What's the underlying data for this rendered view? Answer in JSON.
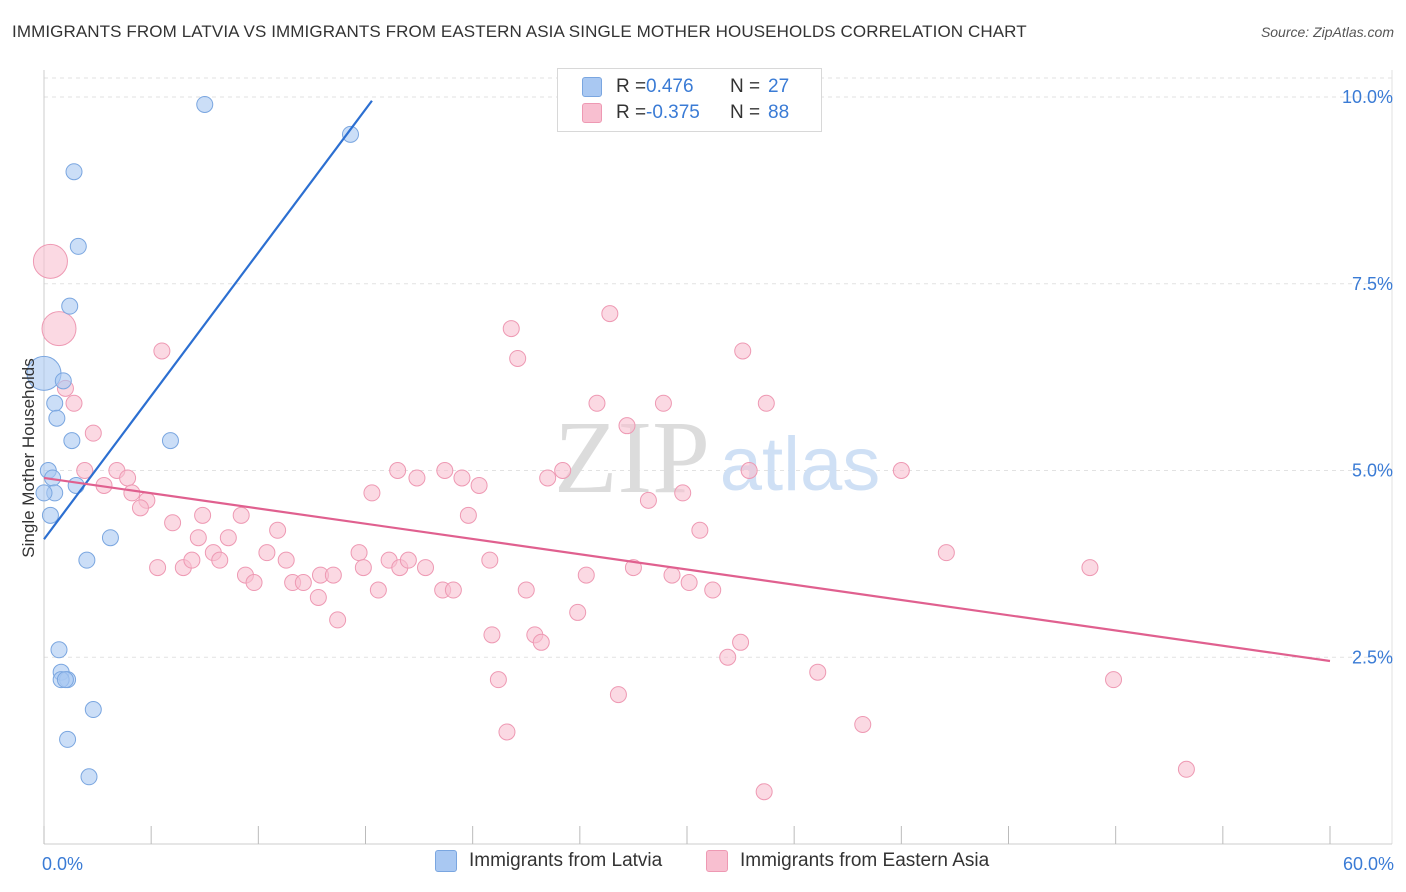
{
  "title": "IMMIGRANTS FROM LATVIA VS IMMIGRANTS FROM EASTERN ASIA SINGLE MOTHER HOUSEHOLDS CORRELATION CHART",
  "source": "Source: ZipAtlas.com",
  "watermark": {
    "zip": "ZIP",
    "atlas": "atlas"
  },
  "colors": {
    "latvia_fill": "#a9c8f2",
    "latvia_stroke": "#7aa6e0",
    "latvia_line": "#2c6fd1",
    "asia_fill": "#f8bfd0",
    "asia_stroke": "#ee99b3",
    "asia_line": "#e0608f",
    "axis_text": "#3a7bd5",
    "grid": "#e2e2e2"
  },
  "legend": {
    "latvia": {
      "r_label": "R =",
      "r_value": "0.476",
      "n_label": "N =",
      "n_value": "27"
    },
    "asia": {
      "r_label": "R =",
      "r_value": "-0.375",
      "n_label": "N =",
      "n_value": "88"
    }
  },
  "bottom_legend": {
    "latvia": "Immigrants from Latvia",
    "asia": "Immigrants from Eastern Asia"
  },
  "chart_data": {
    "type": "scatter",
    "title": "IMMIGRANTS FROM LATVIA VS IMMIGRANTS FROM EASTERN ASIA SINGLE MOTHER HOUSEHOLDS CORRELATION CHART",
    "xlabel": "",
    "ylabel": "Single Mother Households",
    "xlim": [
      0,
      60
    ],
    "ylim": [
      0,
      10.5
    ],
    "x_tick_labels": [
      {
        "value": 0,
        "label": "0.0%"
      },
      {
        "value": 60,
        "label": "60.0%"
      }
    ],
    "y_ticks": [
      {
        "value": 2.5,
        "label": "2.5%"
      },
      {
        "value": 5.0,
        "label": "5.0%"
      },
      {
        "value": 7.5,
        "label": "7.5%"
      },
      {
        "value": 10.0,
        "label": "10.0%"
      }
    ],
    "grid": true,
    "series": [
      {
        "name": "Immigrants from Latvia",
        "color": "#a9c8f2",
        "points": [
          [
            7.5,
            9.9
          ],
          [
            14.3,
            9.5
          ],
          [
            1.4,
            9.0
          ],
          [
            1.6,
            8.0
          ],
          [
            1.2,
            7.2
          ],
          [
            0.0,
            6.3,
            "large"
          ],
          [
            0.9,
            6.2
          ],
          [
            0.5,
            5.9
          ],
          [
            0.6,
            5.7
          ],
          [
            1.3,
            5.4
          ],
          [
            5.9,
            5.4
          ],
          [
            0.2,
            5.0
          ],
          [
            0.4,
            4.9
          ],
          [
            0.5,
            4.7
          ],
          [
            0.0,
            4.7
          ],
          [
            1.5,
            4.8
          ],
          [
            0.3,
            4.4
          ],
          [
            3.1,
            4.1
          ],
          [
            2.0,
            3.8
          ],
          [
            0.7,
            2.6
          ],
          [
            0.8,
            2.3
          ],
          [
            1.1,
            2.2
          ],
          [
            0.8,
            2.2
          ],
          [
            1.0,
            2.2
          ],
          [
            2.3,
            1.8
          ],
          [
            1.1,
            1.4
          ],
          [
            2.1,
            0.9
          ]
        ],
        "trend": {
          "x0": 0.0,
          "y0": 4.08,
          "x1": 15.3,
          "y1": 9.95
        }
      },
      {
        "name": "Immigrants from Eastern Asia",
        "color": "#f8bfd0",
        "points": [
          [
            0.3,
            7.8,
            "large"
          ],
          [
            0.7,
            6.9,
            "large"
          ],
          [
            1.0,
            6.1
          ],
          [
            1.4,
            5.9
          ],
          [
            2.3,
            5.5
          ],
          [
            5.5,
            6.6
          ],
          [
            1.9,
            5.0
          ],
          [
            3.4,
            5.0
          ],
          [
            3.9,
            4.9
          ],
          [
            2.8,
            4.8
          ],
          [
            4.1,
            4.7
          ],
          [
            4.8,
            4.6
          ],
          [
            4.5,
            4.5
          ],
          [
            6.0,
            4.3
          ],
          [
            7.4,
            4.4
          ],
          [
            9.2,
            4.4
          ],
          [
            7.2,
            4.1
          ],
          [
            8.6,
            4.1
          ],
          [
            10.9,
            4.2
          ],
          [
            7.9,
            3.9
          ],
          [
            5.3,
            3.7
          ],
          [
            6.5,
            3.7
          ],
          [
            6.9,
            3.8
          ],
          [
            8.2,
            3.8
          ],
          [
            9.4,
            3.6
          ],
          [
            10.4,
            3.9
          ],
          [
            11.3,
            3.8
          ],
          [
            9.8,
            3.5
          ],
          [
            11.6,
            3.5
          ],
          [
            12.1,
            3.5
          ],
          [
            12.9,
            3.6
          ],
          [
            13.5,
            3.6
          ],
          [
            12.8,
            3.3
          ],
          [
            13.7,
            3.0
          ],
          [
            14.7,
            3.9
          ],
          [
            14.9,
            3.7
          ],
          [
            15.6,
            3.4
          ],
          [
            16.1,
            3.8
          ],
          [
            16.6,
            3.7
          ],
          [
            17.0,
            3.8
          ],
          [
            17.8,
            3.7
          ],
          [
            18.6,
            3.4
          ],
          [
            19.1,
            3.4
          ],
          [
            15.3,
            4.7
          ],
          [
            16.5,
            5.0
          ],
          [
            17.4,
            4.9
          ],
          [
            18.7,
            5.0
          ],
          [
            19.5,
            4.9
          ],
          [
            19.8,
            4.4
          ],
          [
            20.3,
            4.8
          ],
          [
            20.8,
            3.8
          ],
          [
            20.9,
            2.8
          ],
          [
            21.2,
            2.2
          ],
          [
            21.6,
            1.5
          ],
          [
            21.8,
            6.9
          ],
          [
            22.1,
            6.5
          ],
          [
            22.5,
            3.4
          ],
          [
            22.9,
            2.8
          ],
          [
            23.2,
            2.7
          ],
          [
            23.5,
            4.9
          ],
          [
            24.2,
            5.0
          ],
          [
            24.9,
            3.1
          ],
          [
            25.3,
            3.6
          ],
          [
            25.8,
            5.9
          ],
          [
            26.4,
            7.1
          ],
          [
            26.8,
            2.0
          ],
          [
            27.2,
            5.6
          ],
          [
            27.5,
            3.7
          ],
          [
            28.2,
            4.6
          ],
          [
            28.9,
            5.9
          ],
          [
            29.3,
            3.6
          ],
          [
            29.8,
            4.7
          ],
          [
            30.1,
            3.5
          ],
          [
            30.6,
            4.2
          ],
          [
            31.2,
            3.4
          ],
          [
            31.9,
            2.5
          ],
          [
            32.5,
            2.7
          ],
          [
            32.6,
            6.6
          ],
          [
            32.9,
            5.0
          ],
          [
            33.7,
            5.9
          ],
          [
            33.6,
            0.7
          ],
          [
            36.1,
            2.3
          ],
          [
            38.2,
            1.6
          ],
          [
            42.1,
            3.9
          ],
          [
            48.8,
            3.7
          ],
          [
            49.9,
            2.2
          ],
          [
            53.3,
            1.0
          ],
          [
            40.0,
            5.0
          ]
        ],
        "trend": {
          "x0": 0.0,
          "y0": 4.9,
          "x1": 60.0,
          "y1": 2.45
        }
      }
    ]
  }
}
